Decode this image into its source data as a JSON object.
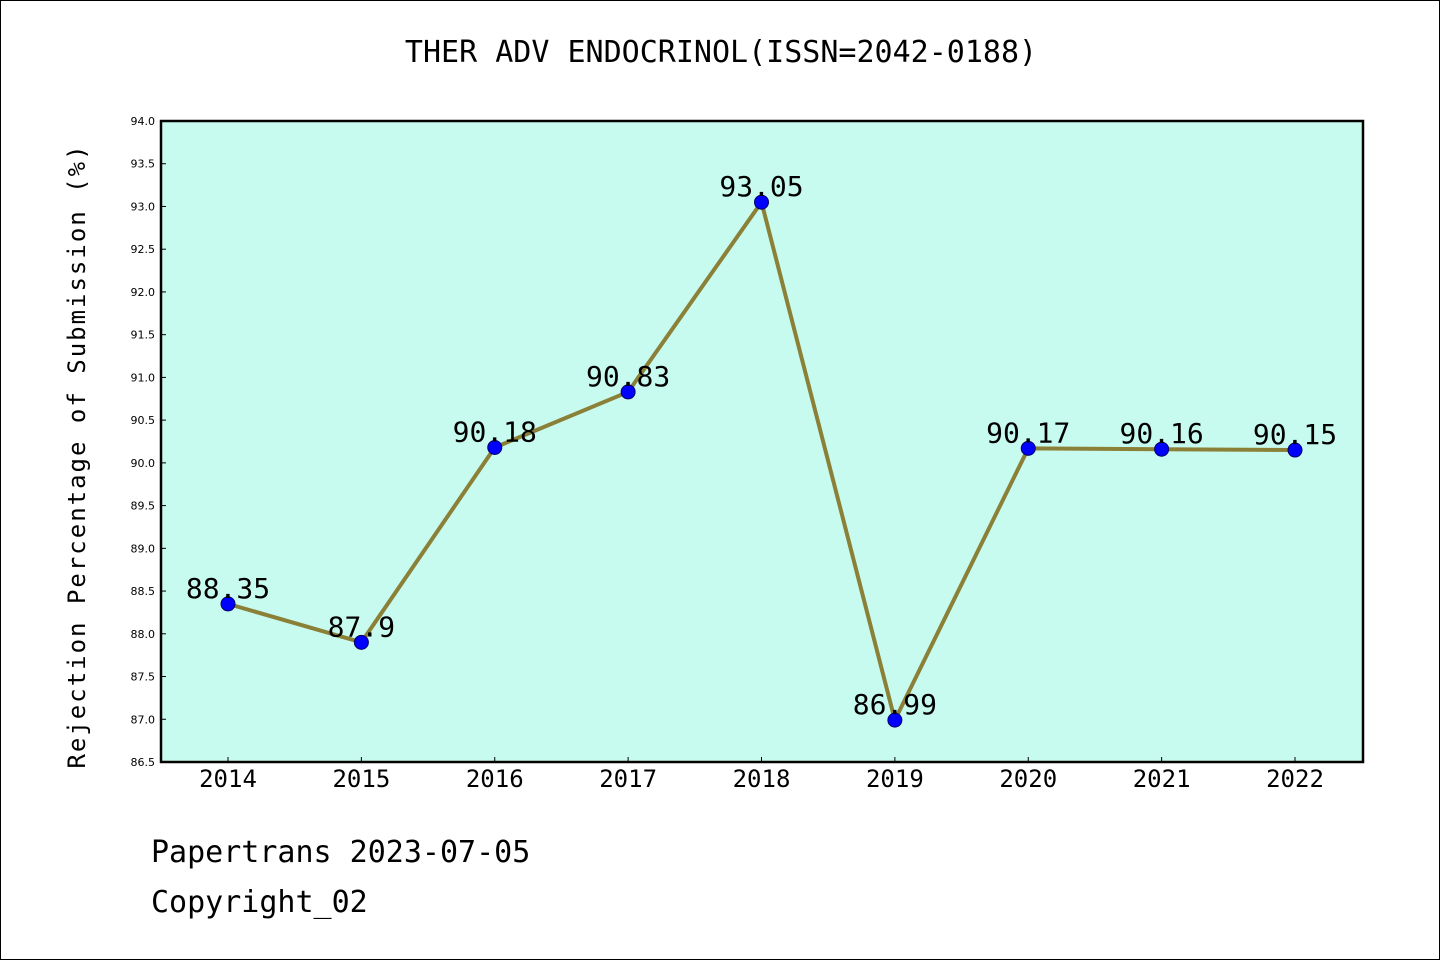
{
  "chart_data": {
    "type": "line",
    "title": "THER ADV ENDOCRINOL(ISSN=2042-0188)",
    "xlabel": "",
    "ylabel": "Rejection Percentage of Submission (%)",
    "categories": [
      "2014",
      "2015",
      "2016",
      "2017",
      "2018",
      "2019",
      "2020",
      "2021",
      "2022"
    ],
    "series": [
      {
        "values": [
          88.35,
          87.9,
          90.18,
          90.83,
          93.05,
          86.99,
          90.17,
          90.16,
          90.15
        ]
      }
    ],
    "data_labels": [
      "88.35",
      "87.9",
      "90.18",
      "90.83",
      "93.05",
      "86.99",
      "90.17",
      "90.16",
      "90.15"
    ],
    "ylim": [
      86.5,
      94.0
    ],
    "yticks": [
      "86.5",
      "87.0",
      "87.5",
      "88.0",
      "88.5",
      "89.0",
      "89.5",
      "90.0",
      "90.5",
      "91.0",
      "91.5",
      "92.0",
      "92.5",
      "93.0",
      "93.5",
      "94.0"
    ],
    "grid": false,
    "colors": {
      "plot_background": "#c8fbef",
      "line": "#8b8038",
      "marker": "#0000ff"
    }
  },
  "footer": {
    "line1": "Papertrans 2023-07-05",
    "line2": "Copyright_02"
  }
}
